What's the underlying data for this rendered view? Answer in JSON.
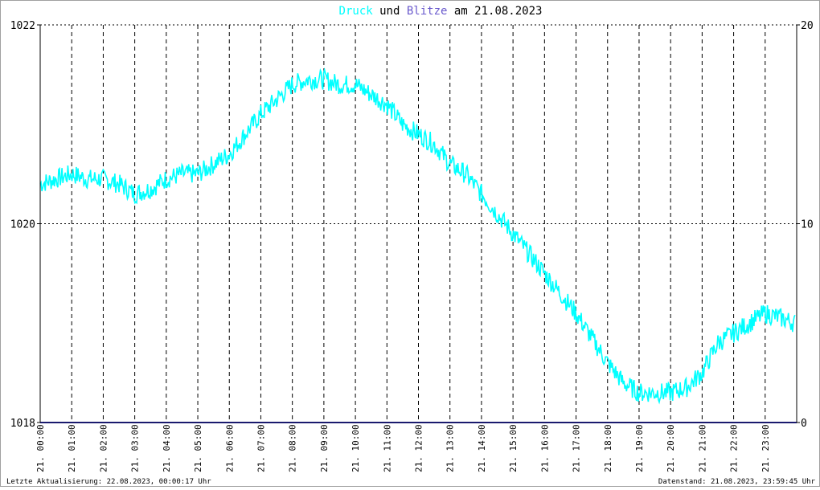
{
  "title": {
    "part1": "Druck",
    "part2": " und ",
    "part3": "Blitze",
    "part4": " am 21.08.2023"
  },
  "footer": {
    "left": "Letzte Aktualisierung: 22.08.2023, 00:00:17 Uhr",
    "right": "Datenstand: 21.08.2023, 23:59:45 Uhr"
  },
  "colors": {
    "druck": "#00ffff",
    "blitze": "#6a5acd",
    "blitze_line": "#1a1a6e",
    "grid": "#000000",
    "text": "#000000"
  },
  "chart_data": {
    "type": "line",
    "x_tick_labels": [
      "21. 00:00",
      "21. 01:00",
      "21. 02:00",
      "21. 03:00",
      "21. 04:00",
      "21. 05:00",
      "21. 06:00",
      "21. 07:00",
      "21. 08:00",
      "21. 09:00",
      "21. 10:00",
      "21. 11:00",
      "21. 12:00",
      "21. 13:00",
      "21. 14:00",
      "21. 15:00",
      "21. 16:00",
      "21. 17:00",
      "21. 18:00",
      "21. 19:00",
      "21. 20:00",
      "21. 21:00",
      "21. 22:00",
      "21. 23:00"
    ],
    "y_left": {
      "min": 1018,
      "max": 1022,
      "ticks": [
        "1018",
        "1020",
        "1022"
      ]
    },
    "y_right": {
      "min": 0,
      "max": 20,
      "ticks": [
        "0",
        "10",
        "20"
      ]
    },
    "x_range_hours": [
      0,
      24
    ],
    "grid": true,
    "series": [
      {
        "name": "Druck",
        "axis": "left",
        "x_hours": [
          0,
          0.5,
          1,
          1.5,
          2,
          2.5,
          3,
          3.5,
          4,
          4.5,
          5,
          5.5,
          6,
          6.5,
          7,
          7.5,
          8,
          8.5,
          9,
          9.5,
          10,
          10.5,
          11,
          11.5,
          12,
          12.5,
          13,
          13.5,
          14,
          14.5,
          15,
          15.5,
          16,
          16.5,
          17,
          17.5,
          18,
          18.5,
          19,
          19.5,
          20,
          20.5,
          21,
          21.5,
          22,
          22.5,
          23,
          23.5,
          23.95
        ],
        "y": [
          1020.4,
          1020.45,
          1020.5,
          1020.45,
          1020.45,
          1020.4,
          1020.3,
          1020.35,
          1020.45,
          1020.5,
          1020.5,
          1020.6,
          1020.7,
          1020.9,
          1021.1,
          1021.25,
          1021.4,
          1021.45,
          1021.45,
          1021.4,
          1021.4,
          1021.3,
          1021.2,
          1021.0,
          1020.9,
          1020.8,
          1020.6,
          1020.5,
          1020.3,
          1020.1,
          1019.9,
          1019.7,
          1019.5,
          1019.3,
          1019.1,
          1018.85,
          1018.6,
          1018.4,
          1018.3,
          1018.3,
          1018.3,
          1018.35,
          1018.5,
          1018.8,
          1018.9,
          1019.0,
          1019.1,
          1019.05,
          1019.0
        ],
        "noise_band": 0.1
      },
      {
        "name": "Blitze",
        "axis": "right",
        "x_hours": [
          0,
          24
        ],
        "y": [
          0,
          0
        ]
      }
    ]
  }
}
